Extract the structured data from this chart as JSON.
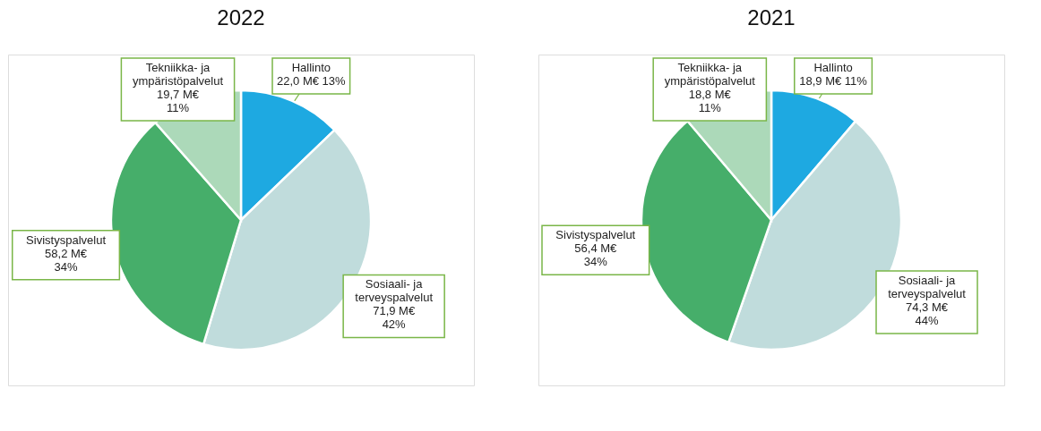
{
  "chart_data": [
    {
      "type": "pie",
      "title": "2022",
      "categories": [
        "Hallinto",
        "Sosiaali- ja terveyspalvelut",
        "Sivistyspalvelut",
        "Tekniikka- ja ympäristöpalvelut"
      ],
      "values": [
        22.0,
        71.9,
        58.2,
        19.7
      ],
      "colors": [
        "#1ea9e1",
        "#c0dcdc",
        "#46ae6a",
        "#acd9b9"
      ],
      "value_labels": [
        "22,0 M€ 13%",
        "71,9 M€\n42%",
        "58,2 M€\n34%",
        "19,7 M€\n11%"
      ]
    },
    {
      "type": "pie",
      "title": "2021",
      "categories": [
        "Hallinto",
        "Sosiaali- ja terveyspalvelut",
        "Sivistyspalvelut",
        "Tekniikka- ja ympäristöpalvelut"
      ],
      "values": [
        18.9,
        74.3,
        56.4,
        18.8
      ],
      "colors": [
        "#1ea9e1",
        "#c0dcdc",
        "#46ae6a",
        "#acd9b9"
      ],
      "value_labels": [
        "18,9 M€ 11%",
        "74,3 M€\n44%",
        "56,4 M€\n34%",
        "18,8 M€\n11%"
      ]
    }
  ]
}
